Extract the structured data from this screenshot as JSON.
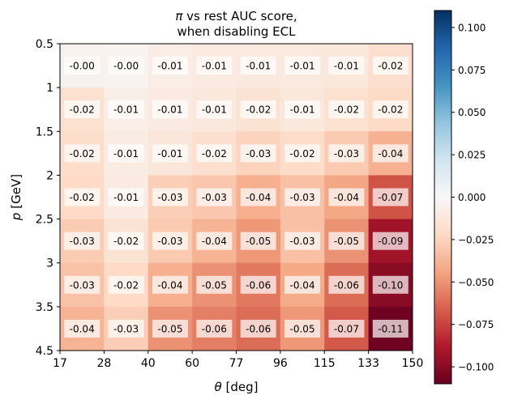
{
  "chart_data": {
    "type": "heatmap",
    "title_parts": [
      [
        {
          "text": "π",
          "italic": true
        },
        {
          "text": " vs rest AUC score,",
          "italic": false
        }
      ],
      [
        {
          "text": "when disabling ECL",
          "italic": false
        }
      ]
    ],
    "xlabel_parts": [
      {
        "text": "θ",
        "italic": true
      },
      {
        "text": " [deg]",
        "italic": false
      }
    ],
    "ylabel_parts": [
      {
        "text": "p",
        "italic": true
      },
      {
        "text": " [GeV]",
        "italic": false
      }
    ],
    "x_edges": [
      "17",
      "28",
      "40",
      "60",
      "77",
      "96",
      "115",
      "133",
      "150"
    ],
    "y_edges": [
      "0.5",
      "1",
      "1.5",
      "2",
      "2.5",
      "3",
      "3.5",
      "4.5"
    ],
    "values": [
      [
        -0.004,
        -0.003,
        -0.008,
        -0.01,
        -0.011,
        -0.011,
        -0.012,
        -0.019
      ],
      [
        -0.018,
        -0.007,
        -0.01,
        -0.012,
        -0.016,
        -0.012,
        -0.018,
        -0.022
      ],
      [
        -0.02,
        -0.009,
        -0.013,
        -0.019,
        -0.025,
        -0.021,
        -0.029,
        -0.039
      ],
      [
        -0.022,
        -0.01,
        -0.027,
        -0.03,
        -0.04,
        -0.033,
        -0.043,
        -0.07
      ],
      [
        -0.028,
        -0.016,
        -0.029,
        -0.038,
        -0.048,
        -0.033,
        -0.05,
        -0.093
      ],
      [
        -0.032,
        -0.022,
        -0.04,
        -0.05,
        -0.058,
        -0.042,
        -0.062,
        -0.1
      ],
      [
        -0.038,
        -0.027,
        -0.05,
        -0.056,
        -0.062,
        -0.048,
        -0.068,
        -0.108
      ]
    ],
    "labels": [
      [
        "-0.00",
        "-0.00",
        "-0.01",
        "-0.01",
        "-0.01",
        "-0.01",
        "-0.01",
        "-0.02"
      ],
      [
        "-0.02",
        "-0.01",
        "-0.01",
        "-0.01",
        "-0.02",
        "-0.01",
        "-0.02",
        "-0.02"
      ],
      [
        "-0.02",
        "-0.01",
        "-0.01",
        "-0.02",
        "-0.03",
        "-0.02",
        "-0.03",
        "-0.04"
      ],
      [
        "-0.02",
        "-0.01",
        "-0.03",
        "-0.03",
        "-0.04",
        "-0.03",
        "-0.04",
        "-0.07"
      ],
      [
        "-0.03",
        "-0.02",
        "-0.03",
        "-0.04",
        "-0.05",
        "-0.03",
        "-0.05",
        "-0.09"
      ],
      [
        "-0.03",
        "-0.02",
        "-0.04",
        "-0.05",
        "-0.06",
        "-0.04",
        "-0.06",
        "-0.10"
      ],
      [
        "-0.04",
        "-0.03",
        "-0.05",
        "-0.06",
        "-0.06",
        "-0.05",
        "-0.07",
        "-0.11"
      ]
    ],
    "colormap": "RdBu",
    "vmin": -0.11,
    "vmax": 0.11,
    "colorbar_ticks": [
      "0.100",
      "0.075",
      "0.050",
      "0.025",
      "0.000",
      "−0.025",
      "−0.050",
      "−0.075",
      "−0.100"
    ],
    "colorbar_tick_values": [
      0.1,
      0.075,
      0.05,
      0.025,
      0.0,
      -0.025,
      -0.05,
      -0.075,
      -0.1
    ],
    "colors": {
      "rdbu": [
        "#67001f",
        "#b2182b",
        "#d6604d",
        "#f4a582",
        "#fddbc7",
        "#f7f7f7",
        "#d1e5f0",
        "#92c5de",
        "#4393c3",
        "#2166ac",
        "#053061"
      ]
    }
  }
}
